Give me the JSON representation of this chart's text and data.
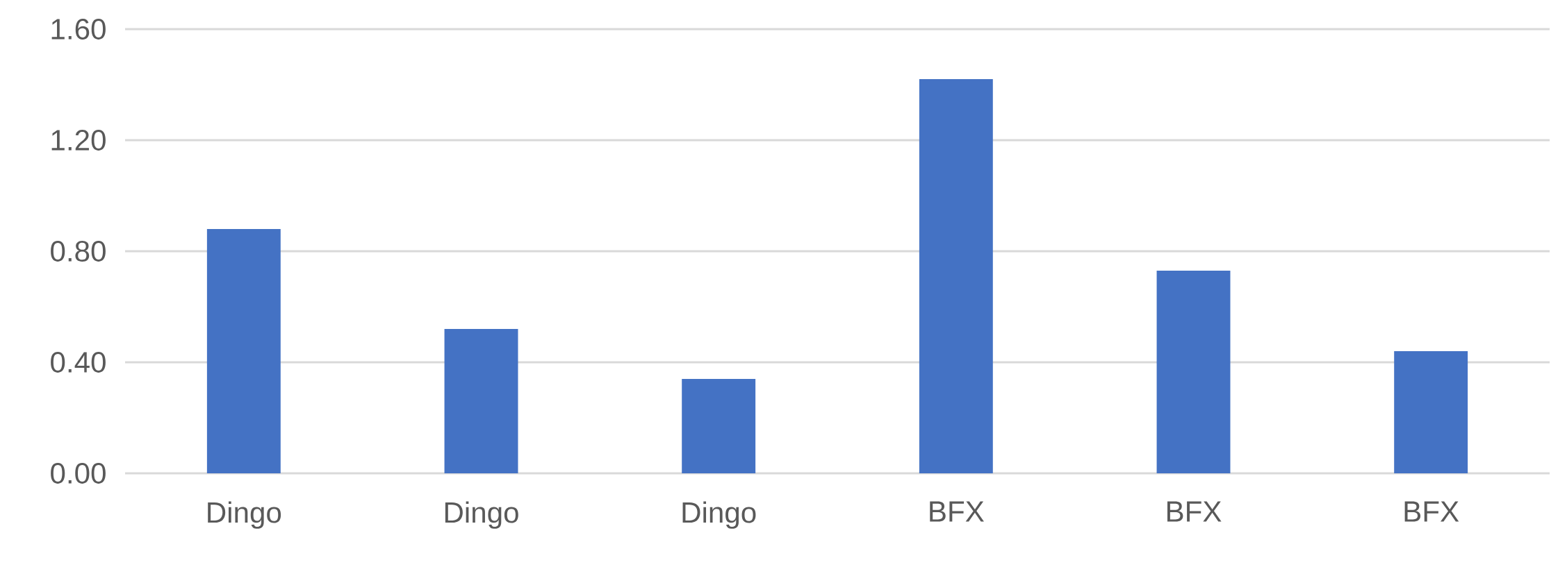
{
  "chart_data": {
    "type": "bar",
    "categories": [
      "Dingo",
      "Dingo",
      "Dingo",
      "BFX",
      "BFX",
      "BFX"
    ],
    "values": [
      0.88,
      0.52,
      0.34,
      1.42,
      0.73,
      0.44
    ],
    "color": "#4472c4",
    "ylim": [
      0,
      1.6
    ],
    "yticks": [
      {
        "value": 0,
        "label": "0.00"
      },
      {
        "value": 0.4,
        "label": "0.40"
      },
      {
        "value": 0.8,
        "label": "0.80"
      },
      {
        "value": 1.2,
        "label": "1.20"
      },
      {
        "value": 1.6,
        "label": "1.60"
      }
    ],
    "grid": "y"
  }
}
